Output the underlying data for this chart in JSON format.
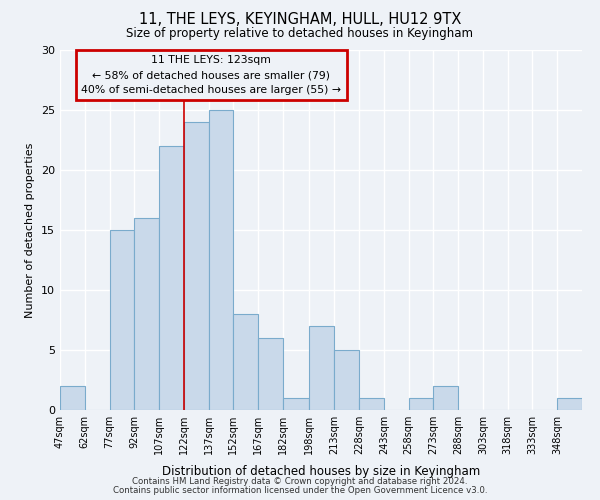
{
  "title1": "11, THE LEYS, KEYINGHAM, HULL, HU12 9TX",
  "title2": "Size of property relative to detached houses in Keyingham",
  "xlabel": "Distribution of detached houses by size in Keyingham",
  "ylabel": "Number of detached properties",
  "bin_labels": [
    "47sqm",
    "62sqm",
    "77sqm",
    "92sqm",
    "107sqm",
    "122sqm",
    "137sqm",
    "152sqm",
    "167sqm",
    "182sqm",
    "198sqm",
    "213sqm",
    "228sqm",
    "243sqm",
    "258sqm",
    "273sqm",
    "288sqm",
    "303sqm",
    "318sqm",
    "333sqm",
    "348sqm"
  ],
  "bar_heights": [
    2,
    0,
    15,
    16,
    22,
    24,
    25,
    8,
    6,
    1,
    7,
    5,
    1,
    0,
    1,
    2,
    0,
    0,
    0,
    0,
    1
  ],
  "bar_color": "#c9d9ea",
  "bar_edge_color": "#7aabcc",
  "property_line_x": 122,
  "bin_edges": [
    47,
    62,
    77,
    92,
    107,
    122,
    137,
    152,
    167,
    182,
    198,
    213,
    228,
    243,
    258,
    273,
    288,
    303,
    318,
    333,
    348,
    363
  ],
  "annotation_title": "11 THE LEYS: 123sqm",
  "annotation_line1": "← 58% of detached houses are smaller (79)",
  "annotation_line2": "40% of semi-detached houses are larger (55) →",
  "annotation_box_color": "#cc0000",
  "vline_color": "#cc0000",
  "ylim": [
    0,
    30
  ],
  "yticks": [
    0,
    5,
    10,
    15,
    20,
    25,
    30
  ],
  "footer1": "Contains HM Land Registry data © Crown copyright and database right 2024.",
  "footer2": "Contains public sector information licensed under the Open Government Licence v3.0.",
  "bg_color": "#eef2f7",
  "grid_color": "#ffffff"
}
